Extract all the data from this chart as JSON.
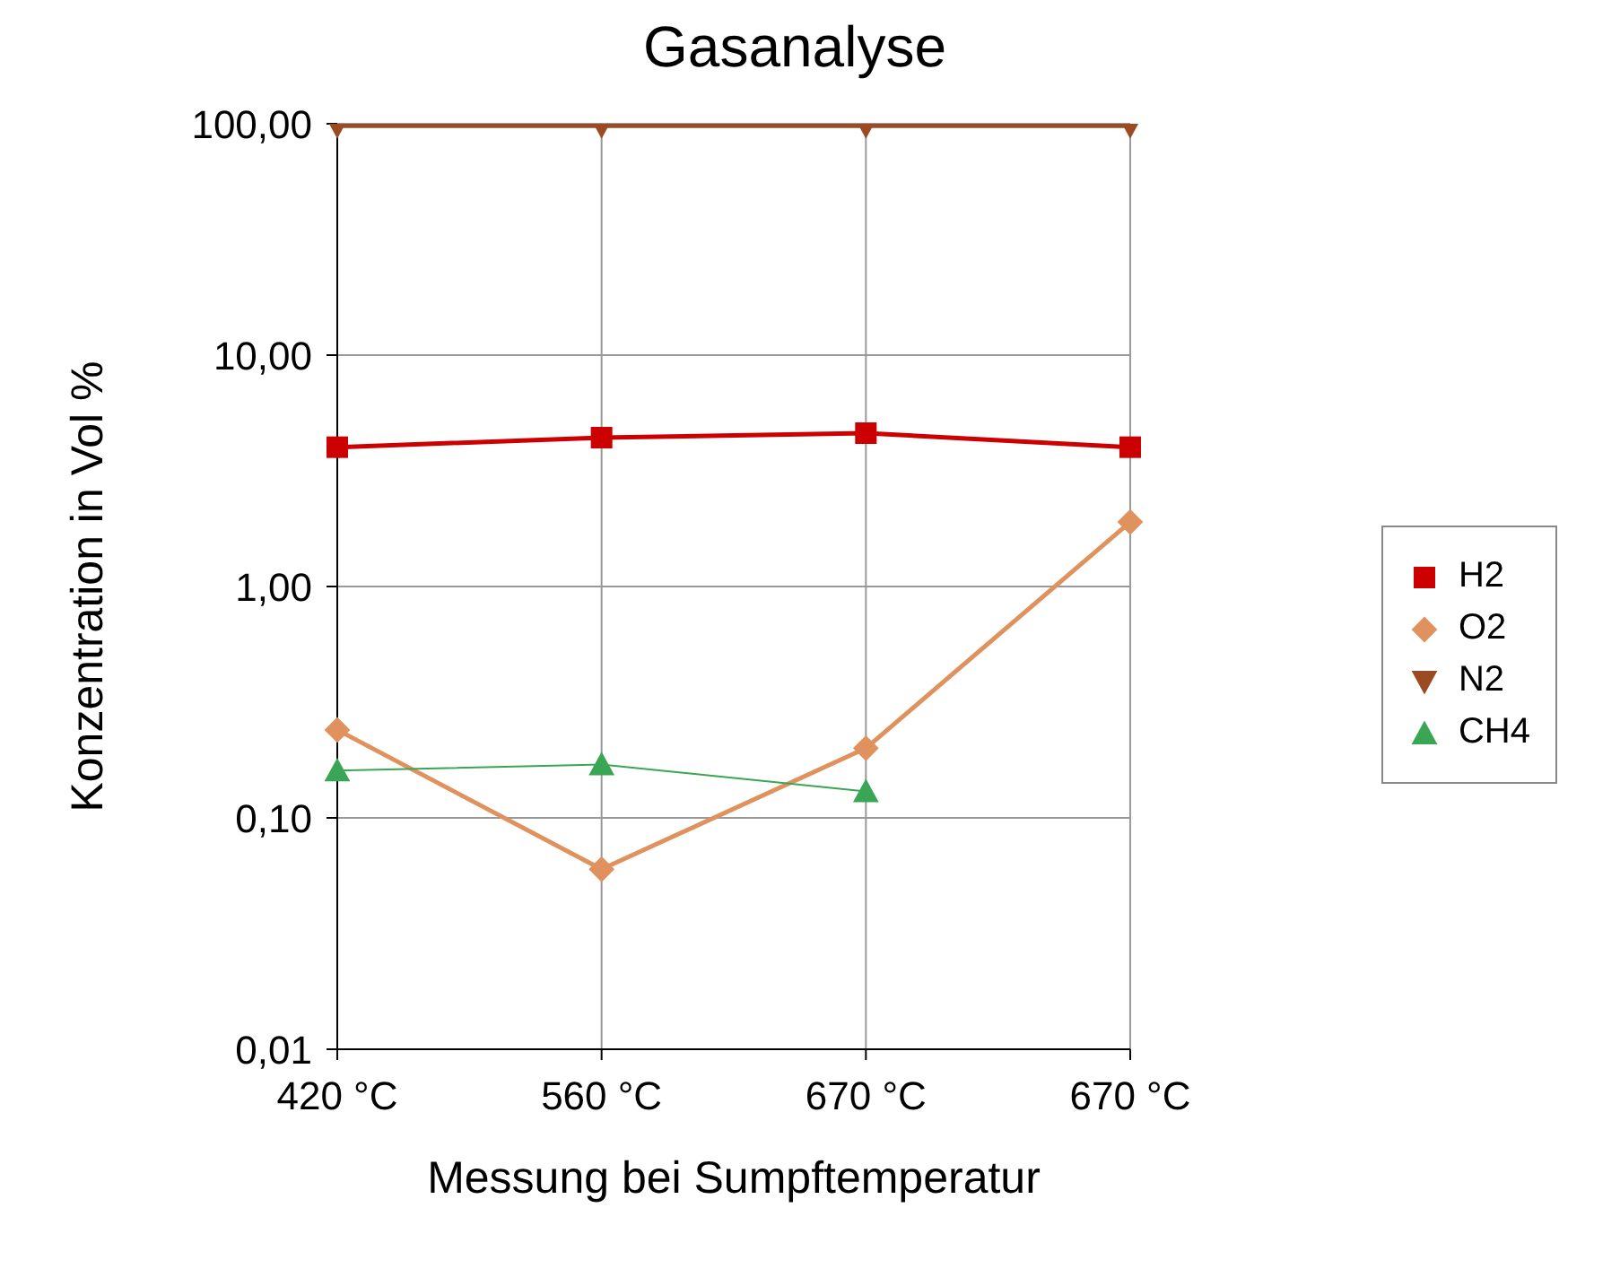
{
  "chart_data": {
    "type": "line",
    "title": "Gasanalyse",
    "xlabel": "Messung bei Sumpftemperatur",
    "ylabel": "Konzentration in Vol %",
    "categories": [
      "420 °C",
      "560 °C",
      "670 °C",
      "670 °C"
    ],
    "series": [
      {
        "name": "H2",
        "color": "#cc0000",
        "marker": "square",
        "values": [
          4.0,
          4.4,
          4.6,
          4.0
        ]
      },
      {
        "name": "O2",
        "color": "#e0925e",
        "marker": "diamond",
        "values": [
          0.24,
          0.06,
          0.2,
          1.9
        ]
      },
      {
        "name": "N2",
        "color": "#9c4a22",
        "marker": "triangle-down",
        "values": [
          98,
          98,
          98,
          98
        ]
      },
      {
        "name": "CH4",
        "color": "#3aa655",
        "marker": "triangle",
        "values": [
          0.16,
          0.17,
          0.13,
          null
        ]
      }
    ],
    "log": "y",
    "ylim": [
      0.01,
      100
    ],
    "yticks": [
      {
        "value": 0.01,
        "label": "0,01"
      },
      {
        "value": 0.1,
        "label": "0,10"
      },
      {
        "value": 1,
        "label": "1,00"
      },
      {
        "value": 10,
        "label": "10,00"
      },
      {
        "value": 100,
        "label": "100,00"
      }
    ],
    "grid": true,
    "legend": "right",
    "line_style": "solid"
  }
}
